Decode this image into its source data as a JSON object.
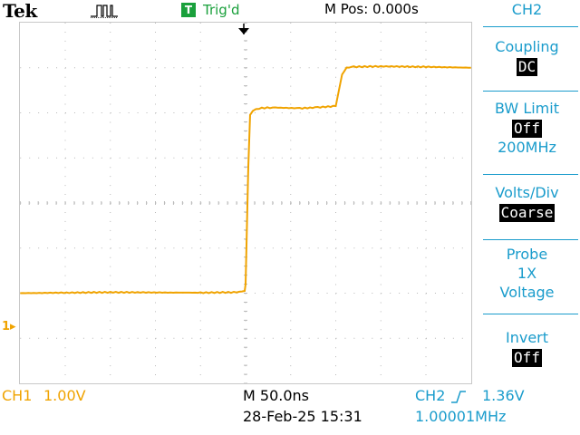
{
  "header": {
    "brand": "Tek",
    "trigger_badge": "T",
    "trigger_status": "Trig'd",
    "m_pos": "M Pos: 0.000s",
    "acquisition_icon": "run-pulse-icon"
  },
  "side_menu": {
    "channel": "CH2",
    "coupling": {
      "label": "Coupling",
      "value": "DC"
    },
    "bw_limit": {
      "label": "BW Limit",
      "value": "Off",
      "sub": "200MHz"
    },
    "volts_div": {
      "label": "Volts/Div",
      "value": "Coarse"
    },
    "probe": {
      "label": "Probe",
      "line2": "1X",
      "line3": "Voltage"
    },
    "invert": {
      "label": "Invert",
      "value": "Off"
    }
  },
  "status": {
    "ch1_label": "CH1",
    "ch1_scale": "1.00V",
    "timebase": "M 50.0ns",
    "datetime": "28-Feb-25 15:31",
    "trigger_source": "CH2",
    "trigger_level": "1.36V",
    "frequency": "1.00001MHz",
    "ch1_marker": "1"
  },
  "colors": {
    "ch1": "#f0a300",
    "accent": "#1a9ccc",
    "trigger_ok": "#1aa03c",
    "grid": "#b8b8b8"
  },
  "chart_data": {
    "type": "line",
    "xlabel": "",
    "ylabel": "",
    "x_unit": "s",
    "y_unit": "V",
    "xlim": [
      -2.5e-07,
      2.5e-07
    ],
    "ylim": [
      -4.0,
      4.0
    ],
    "grid": true,
    "series": [
      {
        "name": "CH1",
        "x": [
          -2.5e-07,
          -1.5e-07,
          -5e-08,
          -1e-08,
          -1e-09,
          0,
          1.5e-09,
          3e-09,
          5e-09,
          8e-09,
          1.5e-08,
          3e-08,
          6e-08,
          8e-08,
          1e-07,
          1.03e-07,
          1.07e-07,
          1.12e-07,
          1.2e-07,
          1.5e-07,
          2e-07,
          2.5e-07
        ],
        "y": [
          -2.0,
          -1.98,
          -1.99,
          -1.98,
          -1.95,
          -1.8,
          -0.5,
          0.8,
          1.95,
          2.05,
          2.1,
          2.12,
          2.1,
          2.12,
          2.15,
          2.45,
          2.85,
          3.0,
          3.02,
          3.03,
          3.02,
          3.0
        ]
      }
    ]
  }
}
